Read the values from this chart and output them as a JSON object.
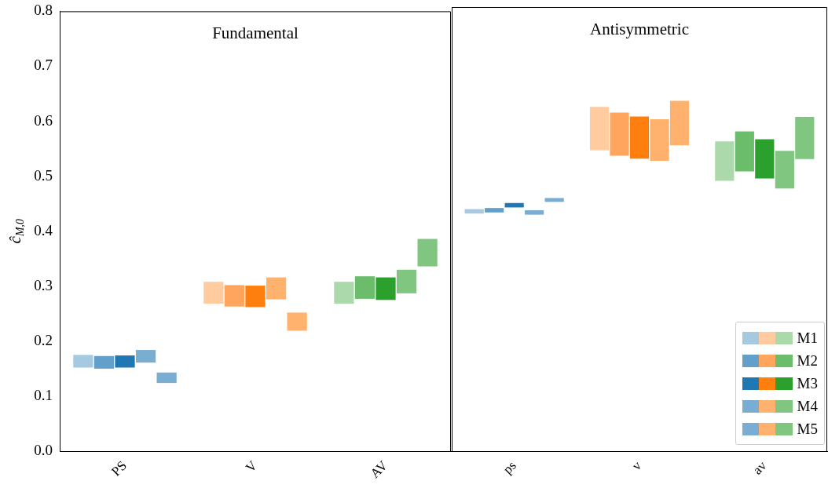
{
  "chart_data": [
    {
      "type": "bar",
      "title": "Fundamental",
      "ylabel": "ĉ$_{M,0}$",
      "categories": [
        "PS",
        "V",
        "AV"
      ],
      "ylim": [
        0,
        0.8
      ],
      "yticks": [
        {
          "value": 0,
          "label": "0.0"
        },
        0.1,
        0.2,
        0.3,
        0.4,
        0.5,
        0.6,
        0.7,
        0.8
      ],
      "series": [
        {
          "colors": [
            "#a5c9e1",
            "#ffcb9f",
            "#abd9ab"
          ],
          "base": [
            0.152,
            0.268,
            0.268
          ],
          "values": [
            0.023,
            0.04,
            0.04
          ]
        },
        {
          "colors": [
            "#62a0cb",
            "#ffa55e",
            "#6bbd6b"
          ],
          "base": [
            0.15,
            0.263,
            0.277
          ],
          "values": [
            0.023,
            0.039,
            0.041
          ]
        },
        {
          "colors": [
            "#1f77b4",
            "#ff7f0e",
            "#2ca02c"
          ],
          "base": [
            0.152,
            0.262,
            0.275
          ],
          "values": [
            0.022,
            0.039,
            0.041
          ]
        },
        {
          "colors": [
            "#79add2",
            "#ffb26e",
            "#80c680"
          ],
          "base": [
            0.161,
            0.276,
            0.287
          ],
          "values": [
            0.023,
            0.04,
            0.043
          ]
        },
        {
          "colors": [
            "#79add2",
            "#ffb26e",
            "#80c680"
          ],
          "base": [
            0.124,
            0.219,
            0.336
          ],
          "values": [
            0.019,
            0.033,
            0.05
          ]
        }
      ]
    },
    {
      "type": "bar",
      "title": "Antisymmetric",
      "categories": [
        "ps",
        "v",
        "av"
      ],
      "ylim": [
        0,
        0.8
      ],
      "yticks": [
        0,
        0.1,
        0.2,
        0.3,
        0.4,
        0.5,
        0.6,
        0.7,
        0.8
      ],
      "tick_labels": "x",
      "legend": "bottom right",
      "series": [
        {
          "name": "M1",
          "colors": [
            "#a5c9e1",
            "#ffcb9f",
            "#abd9ab"
          ],
          "base": [
            0.428,
            0.542,
            0.487
          ],
          "values": [
            0.008,
            0.078,
            0.071
          ]
        },
        {
          "name": "M2",
          "colors": [
            "#62a0cb",
            "#ffa55e",
            "#6bbd6b"
          ],
          "base": [
            0.43,
            0.532,
            0.504
          ],
          "values": [
            0.008,
            0.078,
            0.072
          ]
        },
        {
          "name": "M3",
          "colors": [
            "#1f77b4",
            "#ff7f0e",
            "#2ca02c"
          ],
          "base": [
            0.439,
            0.527,
            0.491
          ],
          "values": [
            0.008,
            0.076,
            0.071
          ]
        },
        {
          "name": "M4",
          "colors": [
            "#79add2",
            "#ffb26e",
            "#80c680"
          ],
          "base": [
            0.426,
            0.523,
            0.473
          ],
          "values": [
            0.008,
            0.075,
            0.068
          ]
        },
        {
          "name": "M5",
          "colors": [
            "#79add2",
            "#ffb26e",
            "#80c680"
          ],
          "base": [
            0.449,
            0.551,
            0.526
          ],
          "values": [
            0.007,
            0.08,
            0.076
          ]
        }
      ]
    }
  ]
}
